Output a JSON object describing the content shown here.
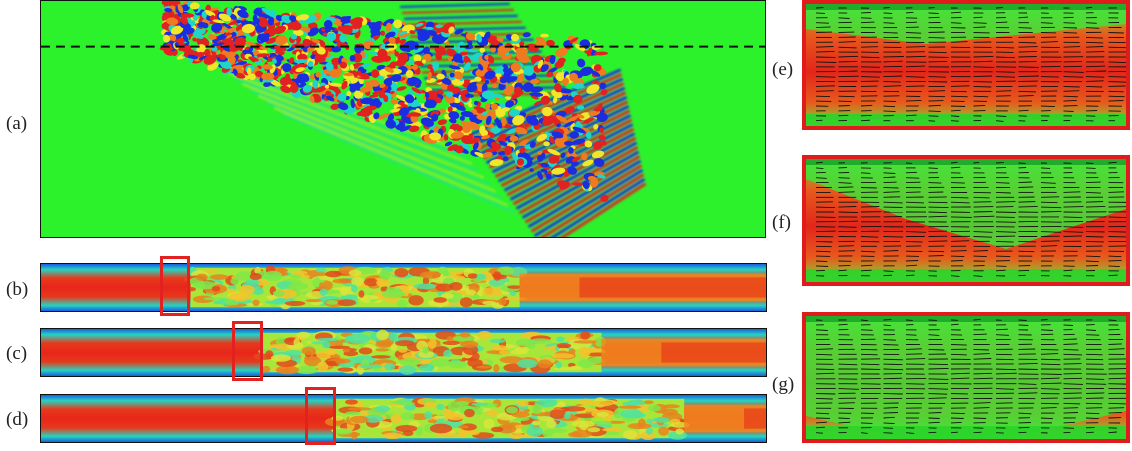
{
  "labels": {
    "a": "(a)",
    "b": "(b)",
    "c": "(c)",
    "d": "(d)",
    "e": "(e)",
    "f": "(f)",
    "g": "(g)"
  },
  "colors": {
    "red": "#e32121",
    "green": "#2cf22c",
    "blue": "#1a2ee0",
    "yellow": "#f0e62a",
    "cyan": "#1ed6c8",
    "orange": "#f07a1f"
  }
}
